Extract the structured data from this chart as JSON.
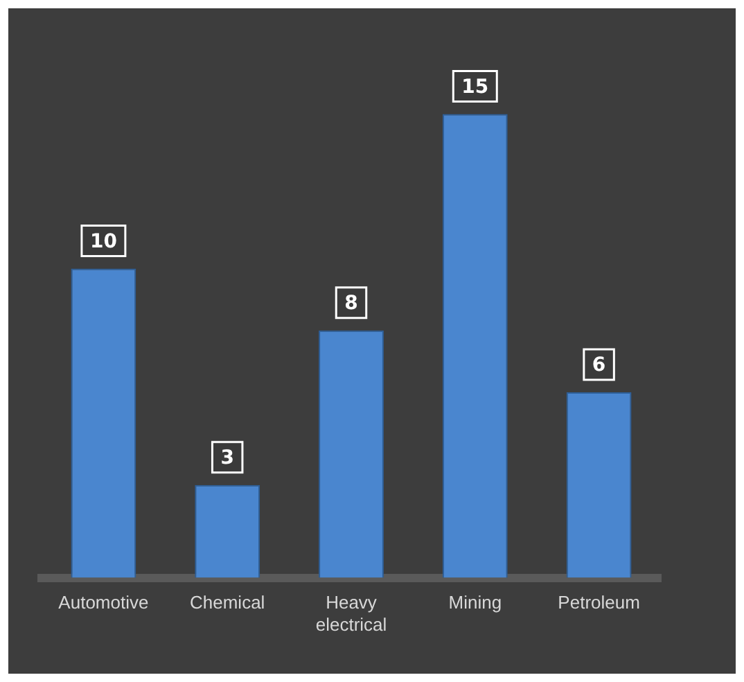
{
  "chart_data": {
    "type": "bar",
    "categories": [
      "Automotive",
      "Chemical",
      "Heavy electrical",
      "Mining",
      "Petroleum"
    ],
    "values": [
      10,
      3,
      8,
      15,
      6
    ],
    "color": "#4a86cf",
    "data_labels": true,
    "legend": false,
    "grid": false
  }
}
